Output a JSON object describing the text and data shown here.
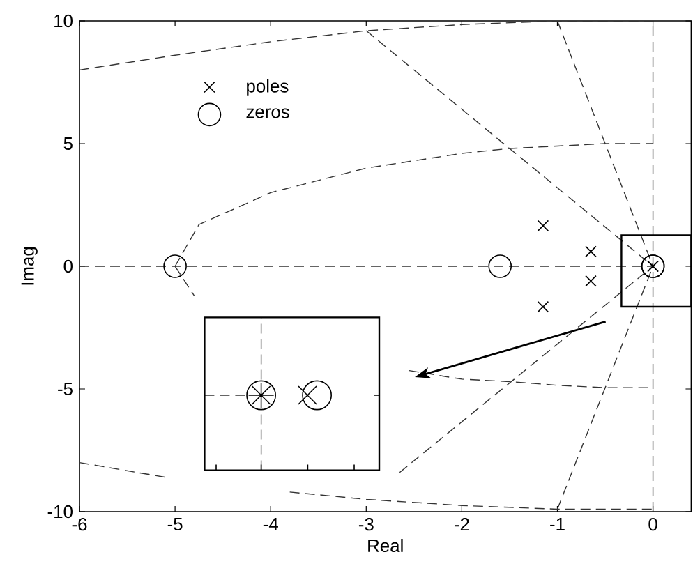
{
  "chart_data": {
    "type": "scatter",
    "xlabel": "Real",
    "ylabel": "Imag",
    "xlim": [
      -6,
      0.4
    ],
    "ylim": [
      -10,
      10
    ],
    "xticks": [
      -6,
      -5,
      -4,
      -3,
      -2,
      -1,
      0
    ],
    "yticks": [
      -10,
      -5,
      0,
      5,
      10
    ],
    "legend": "top left",
    "series": [
      {
        "name": "poles",
        "type": "scatter",
        "marker": "cross",
        "color": "#000000",
        "x": [
          -1.15,
          -1.15,
          -0.65,
          -0.65,
          0,
          0
        ],
        "values": [
          1.65,
          -1.65,
          0.6,
          -0.6,
          0,
          0
        ]
      },
      {
        "name": "zeros",
        "type": "scatter",
        "marker": "circle",
        "color": "#000000",
        "x": [
          -5,
          -1.6,
          0,
          0
        ],
        "values": [
          0,
          0,
          0,
          0
        ]
      },
      {
        "type": "line",
        "line_style": "dashed",
        "marker": "none",
        "color": "#333333",
        "x": [
          -6,
          0
        ],
        "values": [
          0,
          0
        ]
      },
      {
        "type": "line",
        "line_style": "dashed",
        "marker": "none",
        "color": "#333333",
        "x": [
          0,
          0
        ],
        "values": [
          -10,
          10
        ]
      },
      {
        "type": "line",
        "line_style": "dashed",
        "marker": "none",
        "color": "#333333",
        "x": [
          -3.0,
          0
        ],
        "values": [
          9.6,
          0
        ]
      },
      {
        "type": "line",
        "line_style": "dashed",
        "marker": "none",
        "color": "#333333",
        "x": [
          -2.65,
          0
        ],
        "values": [
          -8.4,
          0
        ]
      },
      {
        "type": "line",
        "line_style": "dashed",
        "marker": "none",
        "color": "#333333",
        "x": [
          -1.0,
          0
        ],
        "values": [
          10,
          0
        ]
      },
      {
        "type": "line",
        "line_style": "dashed",
        "marker": "none",
        "color": "#333333",
        "x": [
          -1.0,
          0
        ],
        "values": [
          -9.9,
          0
        ]
      },
      {
        "type": "line",
        "line_style": "dashed",
        "marker": "none",
        "color": "#333333",
        "x": [
          -6,
          -5,
          -4,
          -3,
          -2,
          -1,
          0
        ],
        "values": [
          8.0,
          8.6,
          9.15,
          9.6,
          9.85,
          10,
          10
        ]
      },
      {
        "type": "line",
        "line_style": "dashed",
        "marker": "none",
        "color": "#333333",
        "x": [
          -6,
          -5.1,
          -4.5,
          -3.8,
          -3,
          -2,
          -1,
          0
        ],
        "values": [
          -8.0,
          -8.6,
          null,
          -9.2,
          -9.5,
          -9.75,
          -9.9,
          -9.9
        ]
      },
      {
        "type": "line",
        "line_style": "dashed",
        "marker": "none",
        "color": "#333333",
        "x": [
          -5,
          -4.75,
          -4,
          -3,
          -2,
          -1.5,
          -1,
          -0.5,
          0
        ],
        "values": [
          0,
          1.7,
          3.0,
          4.0,
          4.6,
          4.8,
          4.9,
          5.0,
          5.0
        ]
      },
      {
        "type": "line",
        "line_style": "dashed",
        "marker": "none",
        "color": "#333333",
        "x": [
          -5,
          -4.8,
          -4.0,
          -2.55,
          -2,
          -1.5,
          -1,
          -0.5,
          0
        ],
        "values": [
          0,
          -1.2,
          null,
          -4.25,
          -4.6,
          -4.7,
          -4.85,
          -4.95,
          -4.95
        ]
      }
    ]
  }
}
